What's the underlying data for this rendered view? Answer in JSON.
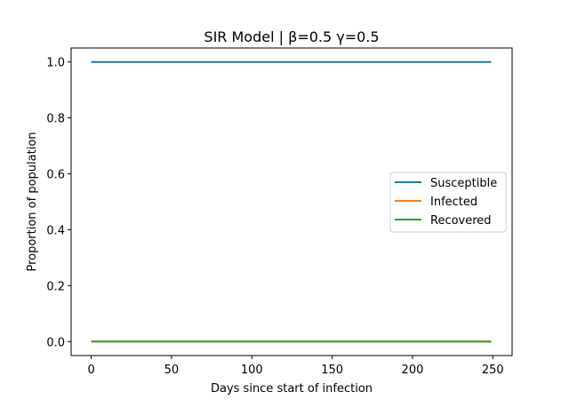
{
  "chart_data": {
    "type": "line",
    "title": "SIR Model | β=0.5 γ=0.5",
    "xlabel": "Days since start of infection",
    "ylabel": "Proportion of population",
    "xlim": [
      -12.5,
      262
    ],
    "ylim": [
      -0.05,
      1.05
    ],
    "xticks": [
      0,
      50,
      100,
      150,
      200,
      250
    ],
    "yticks": [
      0.0,
      0.2,
      0.4,
      0.6,
      0.8,
      1.0
    ],
    "ytick_labels": [
      "0.0",
      "0.2",
      "0.4",
      "0.6",
      "0.8",
      "1.0"
    ],
    "grid": false,
    "legend_position": "center-right",
    "x": [
      0,
      249
    ],
    "series": [
      {
        "name": "Susceptible",
        "color": "#1f77b4",
        "values": [
          1.0,
          1.0
        ]
      },
      {
        "name": "Infected",
        "color": "#ff7f0e",
        "values": [
          0.0,
          0.0
        ]
      },
      {
        "name": "Recovered",
        "color": "#2ca02c",
        "values": [
          0.0,
          0.0
        ]
      }
    ]
  }
}
